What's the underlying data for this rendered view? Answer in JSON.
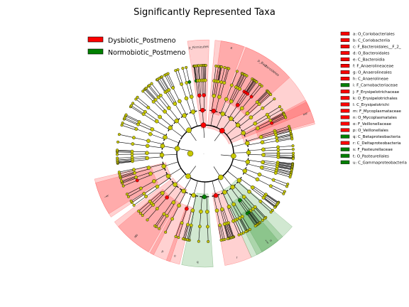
{
  "chart_data": {
    "type": "cladogram",
    "title": "Significantly Represented Taxa",
    "groups": [
      {
        "name": "Dysbiotic_Postmeno",
        "color": "#ff0000",
        "shade": "#ff8080"
      },
      {
        "name": "Normobiotic_Postmeno",
        "color": "#008000",
        "shade": "#80c080"
      }
    ],
    "node_color": "#c8c800",
    "taxa": [
      {
        "key": "a",
        "name": "O_Coriobacteriales",
        "group": 0
      },
      {
        "key": "b",
        "name": "C_Coriobacteriia",
        "group": 0
      },
      {
        "key": "c",
        "name": "F_Bacteroidales__F_2_",
        "group": 0
      },
      {
        "key": "d",
        "name": "O_Bacteroidales",
        "group": 0
      },
      {
        "key": "e",
        "name": "C_Bacteroidia",
        "group": 0
      },
      {
        "key": "f",
        "name": "F_Anaerolineaceae",
        "group": 0
      },
      {
        "key": "g",
        "name": "O_Anaerolineales",
        "group": 0
      },
      {
        "key": "h",
        "name": "C_Anaerolineae",
        "group": 0
      },
      {
        "key": "i",
        "name": "F_Carnobacteriaceae",
        "group": 1
      },
      {
        "key": "j",
        "name": "F_Erysipelotrichaceae",
        "group": 0
      },
      {
        "key": "k",
        "name": "O_Erysipelotrichales",
        "group": 0
      },
      {
        "key": "l",
        "name": "C_Erysipelotrichi",
        "group": 0
      },
      {
        "key": "m",
        "name": "F_Mycoplasmataceae",
        "group": 0
      },
      {
        "key": "n",
        "name": "O_Mycoplasmatales",
        "group": 0
      },
      {
        "key": "o",
        "name": "F_Veillonellaceae",
        "group": 0
      },
      {
        "key": "p",
        "name": "O_Veillonellales",
        "group": 0
      },
      {
        "key": "q",
        "name": "C_Betaproteobacteria",
        "group": 1
      },
      {
        "key": "r",
        "name": "C_Deltaproteobacteria",
        "group": 0
      },
      {
        "key": "s",
        "name": "F_Pasteurellaceae",
        "group": 1
      },
      {
        "key": "t",
        "name": "O_Pasteurellales",
        "group": 1
      },
      {
        "key": "u",
        "name": "C_Gammaproteobacteria",
        "group": 1
      }
    ],
    "phylum_labels": [
      "p_Firmicutes",
      "p_Bacteroidetes"
    ],
    "clade_wedges": [
      {
        "label": "p_Firmicutes",
        "group": 0
      },
      {
        "label": "p_Bacteroidetes",
        "group": 0
      },
      {
        "label": "e",
        "group": 0
      },
      {
        "label": "d",
        "group": 0
      },
      {
        "label": "b",
        "group": 0
      },
      {
        "label": "a",
        "group": 0
      },
      {
        "label": "l",
        "group": 0
      },
      {
        "label": "k",
        "group": 0
      },
      {
        "label": "h",
        "group": 0
      },
      {
        "label": "g",
        "group": 0
      },
      {
        "label": "p",
        "group": 0
      },
      {
        "label": "o",
        "group": 0
      },
      {
        "label": "q",
        "group": 1
      },
      {
        "label": "r",
        "group": 0
      },
      {
        "label": "u",
        "group": 1
      },
      {
        "label": "t",
        "group": 1
      },
      {
        "label": "s",
        "group": 1
      }
    ],
    "center_label": "."
  }
}
